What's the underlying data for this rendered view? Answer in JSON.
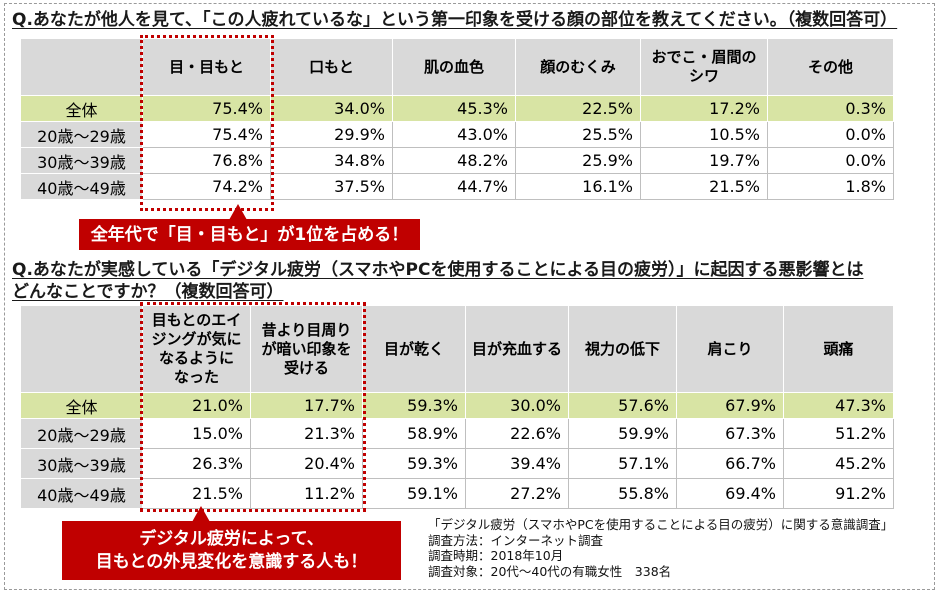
{
  "chart_data": [
    {
      "type": "table",
      "title": "Q.あなたが他人を見て、「この人疲れているな」という第一印象を受ける顔の部位を教えてください。（複数回答可）",
      "columns": [
        "目・目もと",
        "口もと",
        "肌の血色",
        "顔のむくみ",
        "おでこ・眉間の\nシワ",
        "その他"
      ],
      "unit": "%",
      "highlighted_columns": [
        0
      ],
      "rows": [
        {
          "label": "全体",
          "values": [
            75.4,
            34.0,
            45.3,
            22.5,
            17.2,
            0.3
          ]
        },
        {
          "label": "20歳～29歳",
          "values": [
            75.4,
            29.9,
            43.0,
            25.5,
            10.5,
            0.0
          ]
        },
        {
          "label": "30歳～39歳",
          "values": [
            76.8,
            34.8,
            48.2,
            25.9,
            19.7,
            0.0
          ]
        },
        {
          "label": "40歳～49歳",
          "values": [
            74.2,
            37.5,
            44.7,
            16.1,
            21.5,
            1.8
          ]
        }
      ]
    },
    {
      "type": "table",
      "title": "Q.あなたが実感している「デジタル疲労（スマホやPCを使用することによる目の疲労）」に起因する悪影響とは\nどんなことですか？（複数回答可）",
      "columns": [
        "目もとのエイ\nジングが気に\nなるように\nなった",
        "昔より目周り\nが暗い印象を\n受ける",
        "目が乾く",
        "目が充血する",
        "視力の低下",
        "肩こり",
        "頭痛"
      ],
      "unit": "%",
      "highlighted_columns": [
        0,
        1
      ],
      "rows": [
        {
          "label": "全体",
          "values": [
            21.0,
            17.7,
            59.3,
            30.0,
            57.6,
            67.9,
            47.3
          ]
        },
        {
          "label": "20歳～29歳",
          "values": [
            15.0,
            21.3,
            58.9,
            22.6,
            59.9,
            67.3,
            51.2
          ]
        },
        {
          "label": "30歳～39歳",
          "values": [
            26.3,
            20.4,
            59.3,
            39.4,
            57.1,
            66.7,
            45.2
          ]
        },
        {
          "label": "40歳～49歳",
          "values": [
            21.5,
            11.2,
            59.1,
            27.2,
            55.8,
            69.4,
            91.2
          ]
        }
      ]
    }
  ],
  "callouts": [
    "全年代で「目・目もと」が1位を占める！",
    "デジタル疲労によって、\n目もとの外見変化を意識する人も！"
  ],
  "survey_note": {
    "title": "「デジタル疲労（スマホやPCを使用することによる目の疲労）に関する意識調査」",
    "method": "調査方法：インターネット調査",
    "period": "調査時期：2018年10月",
    "target": "調査対象：20代～40代の有職女性　338名"
  },
  "colors": {
    "header_bg": "#d9d9d9",
    "total_row_bg": "#d8e4a4",
    "highlight_red": "#c00000"
  }
}
